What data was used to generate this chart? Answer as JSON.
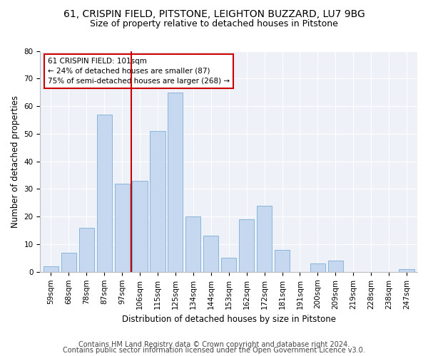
{
  "title1": "61, CRISPIN FIELD, PITSTONE, LEIGHTON BUZZARD, LU7 9BG",
  "title2": "Size of property relative to detached houses in Pitstone",
  "xlabel": "Distribution of detached houses by size in Pitstone",
  "ylabel": "Number of detached properties",
  "categories": [
    "59sqm",
    "68sqm",
    "78sqm",
    "87sqm",
    "97sqm",
    "106sqm",
    "115sqm",
    "125sqm",
    "134sqm",
    "144sqm",
    "153sqm",
    "162sqm",
    "172sqm",
    "181sqm",
    "191sqm",
    "200sqm",
    "209sqm",
    "219sqm",
    "228sqm",
    "238sqm",
    "247sqm"
  ],
  "values": [
    2,
    7,
    16,
    57,
    32,
    33,
    51,
    65,
    20,
    13,
    5,
    19,
    24,
    8,
    0,
    3,
    4,
    0,
    0,
    0,
    1
  ],
  "bar_color": "#c5d8f0",
  "bar_edge_color": "#7aaed4",
  "vline_x": 4.5,
  "vline_color": "#cc0000",
  "annotation_line1": "61 CRISPIN FIELD: 101sqm",
  "annotation_line2": "← 24% of detached houses are smaller (87)",
  "annotation_line3": "75% of semi-detached houses are larger (268) →",
  "annotation_box_color": "#cc0000",
  "ylim": [
    0,
    80
  ],
  "yticks": [
    0,
    10,
    20,
    30,
    40,
    50,
    60,
    70,
    80
  ],
  "footer1": "Contains HM Land Registry data © Crown copyright and database right 2024.",
  "footer2": "Contains public sector information licensed under the Open Government Licence v3.0.",
  "bg_color": "#ffffff",
  "plot_bg_color": "#eef2f8",
  "title1_fontsize": 10,
  "title2_fontsize": 9,
  "xlabel_fontsize": 8.5,
  "ylabel_fontsize": 8.5,
  "tick_fontsize": 7.5,
  "annotation_fontsize": 7.5,
  "footer_fontsize": 7
}
